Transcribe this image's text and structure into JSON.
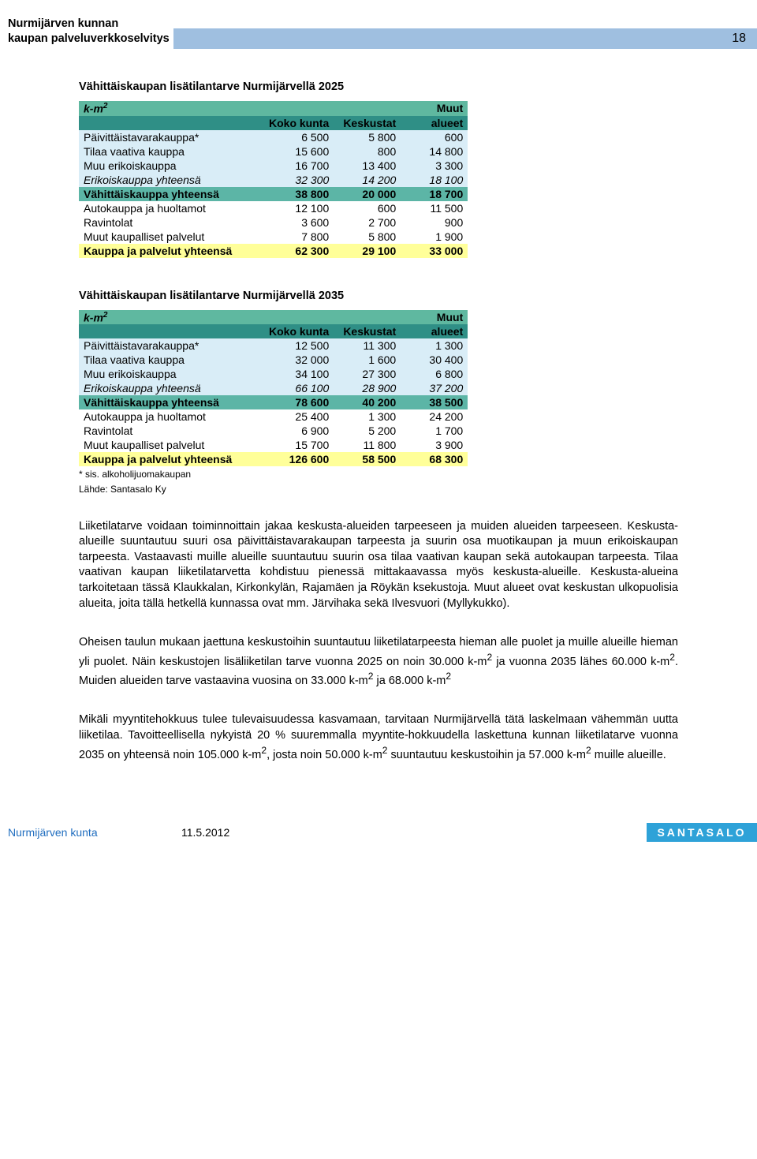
{
  "header": {
    "title_line1": "Nurmijärven kunnan",
    "title_line2": "kaupan palveluverkkoselvitys",
    "page_number": "18",
    "band_color": "#9fbfe0"
  },
  "section_title_1": "Vähittäiskaupan lisätilantarve Nurmijärvellä 2025",
  "section_title_2": "Vähittäiskaupan lisätilantarve Nurmijärvellä 2035",
  "table_headers": {
    "unit": "k-m",
    "sup": "2",
    "col1": "Koko kunta",
    "col2": "Keskustat",
    "col3_top": "Muut",
    "col3": "alueet"
  },
  "colors": {
    "header_green": "#5fb8a0",
    "header_dark_teal": "#2f8f86",
    "lightblue": "#d9edf7",
    "teal_row": "#5cb5a6",
    "yellow_row": "#ffff99",
    "white": "#ffffff"
  },
  "table1": {
    "rows": [
      {
        "label": "Päivittäistavarakauppa*",
        "v": [
          "6 500",
          "5 800",
          "600"
        ],
        "bg": "lightblue"
      },
      {
        "label": "Tilaa vaativa kauppa",
        "v": [
          "15 600",
          "800",
          "14 800"
        ],
        "bg": "lightblue"
      },
      {
        "label": "Muu erikoiskauppa",
        "v": [
          "16 700",
          "13 400",
          "3 300"
        ],
        "bg": "lightblue"
      },
      {
        "label": "Erikoiskauppa yhteensä",
        "v": [
          "32 300",
          "14 200",
          "18 100"
        ],
        "bg": "lightblue",
        "italic": true
      },
      {
        "label": "Vähittäiskauppa yhteensä",
        "v": [
          "38 800",
          "20 000",
          "18 700"
        ],
        "bg": "teal_row",
        "bold": true
      },
      {
        "label": "Autokauppa ja huoltamot",
        "v": [
          "12 100",
          "600",
          "11 500"
        ],
        "bg": "white"
      },
      {
        "label": "Ravintolat",
        "v": [
          "3 600",
          "2 700",
          "900"
        ],
        "bg": "white"
      },
      {
        "label": "Muut kaupalliset palvelut",
        "v": [
          "7 800",
          "5 800",
          "1 900"
        ],
        "bg": "white"
      },
      {
        "label": "Kauppa ja palvelut yhteensä",
        "v": [
          "62 300",
          "29 100",
          "33 000"
        ],
        "bg": "yellow_row",
        "bold": true
      }
    ]
  },
  "table2": {
    "rows": [
      {
        "label": "Päivittäistavarakauppa*",
        "v": [
          "12 500",
          "11 300",
          "1 300"
        ],
        "bg": "lightblue"
      },
      {
        "label": "Tilaa vaativa kauppa",
        "v": [
          "32 000",
          "1 600",
          "30 400"
        ],
        "bg": "lightblue"
      },
      {
        "label": "Muu erikoiskauppa",
        "v": [
          "34 100",
          "27 300",
          "6 800"
        ],
        "bg": "lightblue"
      },
      {
        "label": "Erikoiskauppa yhteensä",
        "v": [
          "66 100",
          "28 900",
          "37 200"
        ],
        "bg": "lightblue",
        "italic": true
      },
      {
        "label": "Vähittäiskauppa yhteensä",
        "v": [
          "78 600",
          "40 200",
          "38 500"
        ],
        "bg": "teal_row",
        "bold": true
      },
      {
        "label": "Autokauppa ja huoltamot",
        "v": [
          "25 400",
          "1 300",
          "24 200"
        ],
        "bg": "white"
      },
      {
        "label": "Ravintolat",
        "v": [
          "6 900",
          "5 200",
          "1 700"
        ],
        "bg": "white"
      },
      {
        "label": "Muut kaupalliset palvelut",
        "v": [
          "15 700",
          "11 800",
          "3 900"
        ],
        "bg": "white"
      },
      {
        "label": "Kauppa ja palvelut yhteensä",
        "v": [
          "126 600",
          "58 500",
          "68 300"
        ],
        "bg": "yellow_row",
        "bold": true
      }
    ]
  },
  "footnote1": "* sis. alkoholijuomakaupan",
  "footnote2": "Lähde: Santasalo Ky",
  "para1": "Liiketilatarve voidaan toiminnoittain jakaa keskusta-alueiden tarpeeseen ja muiden alueiden tarpeeseen. Keskusta-alueille suuntautuu suuri osa päivittäistavarakaupan tarpeesta ja suurin osa muotikaupan ja muun erikoiskaupan tarpeesta. Vastaavasti muille alueille suuntautuu suurin osa tilaa vaativan kaupan sekä autokaupan tarpeesta. Tilaa vaativan kaupan liiketilatarvetta kohdistuu pienessä mittakaavassa myös keskusta-alueille. Keskusta-alueina tarkoitetaan tässä Klaukkalan, Kirkonkylän, Rajamäen ja Röykän ksekustoja. Muut alueet ovat keskustan ulkopuolisia alueita, joita tällä hetkellä kunnassa ovat mm. Järvihaka sekä Ilvesvuori (Myllykukko).",
  "para2_pre": "Oheisen taulun mukaan jaettuna keskustoihin suuntautuu liiketilatarpeesta hieman alle puolet ja muille alueille hieman yli puolet. Näin keskustojen lisäliiketilan tarve vuonna 2025 on noin 30.000 k-m",
  "para2_mid": " ja vuonna 2035 lähes 60.000 k-m",
  "para2_post": ". Muiden alueiden tarve vastaavina vuosina on 33.000 k-m",
  "para2_end": " ja 68.000 k-m",
  "para3_pre": "Mikäli myyntitehokkuus tulee tulevaisuudessa kasvamaan, tarvitaan Nurmijärvellä tätä laskelmaan vähemmän uutta liiketilaa. Tavoitteellisella nykyistä 20 % suuremmalla myyntite-hokkuudella laskettuna kunnan liiketilatarve vuonna 2035 on yhteensä noin 105.000 k-m",
  "para3_mid": ", josta noin 50.000 k-m",
  "para3_mid2": " suuntautuu keskustoihin ja 57.000 k-m",
  "para3_end": " muille alueille.",
  "footer": {
    "left": "Nurmijärven kunta",
    "date": "11.5.2012",
    "logo": "SANTASALO"
  }
}
